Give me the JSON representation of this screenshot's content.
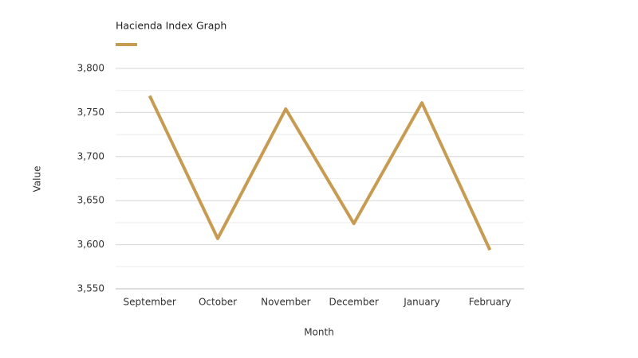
{
  "chart_data": {
    "type": "line",
    "title": "Hacienda Index Graph",
    "x_label": "Month",
    "y_label": "Value",
    "categories": [
      "September",
      "October",
      "November",
      "December",
      "January",
      "February"
    ],
    "series": [
      {
        "color": "#c89b52",
        "values": [
          3769,
          3607,
          3754,
          3624,
          3761,
          3594
        ]
      }
    ],
    "ylim": [
      3550,
      3800
    ],
    "yticks": [
      {
        "value": 3550,
        "label": "3,550"
      },
      {
        "value": 3600,
        "label": "3,600"
      },
      {
        "value": 3650,
        "label": "3,650"
      },
      {
        "value": 3700,
        "label": "3,700"
      },
      {
        "value": 3750,
        "label": "3,750"
      },
      {
        "value": 3800,
        "label": "3,800"
      }
    ],
    "minor_yticks": [
      3575,
      3625,
      3675,
      3725,
      3775
    ],
    "grid": true
  }
}
